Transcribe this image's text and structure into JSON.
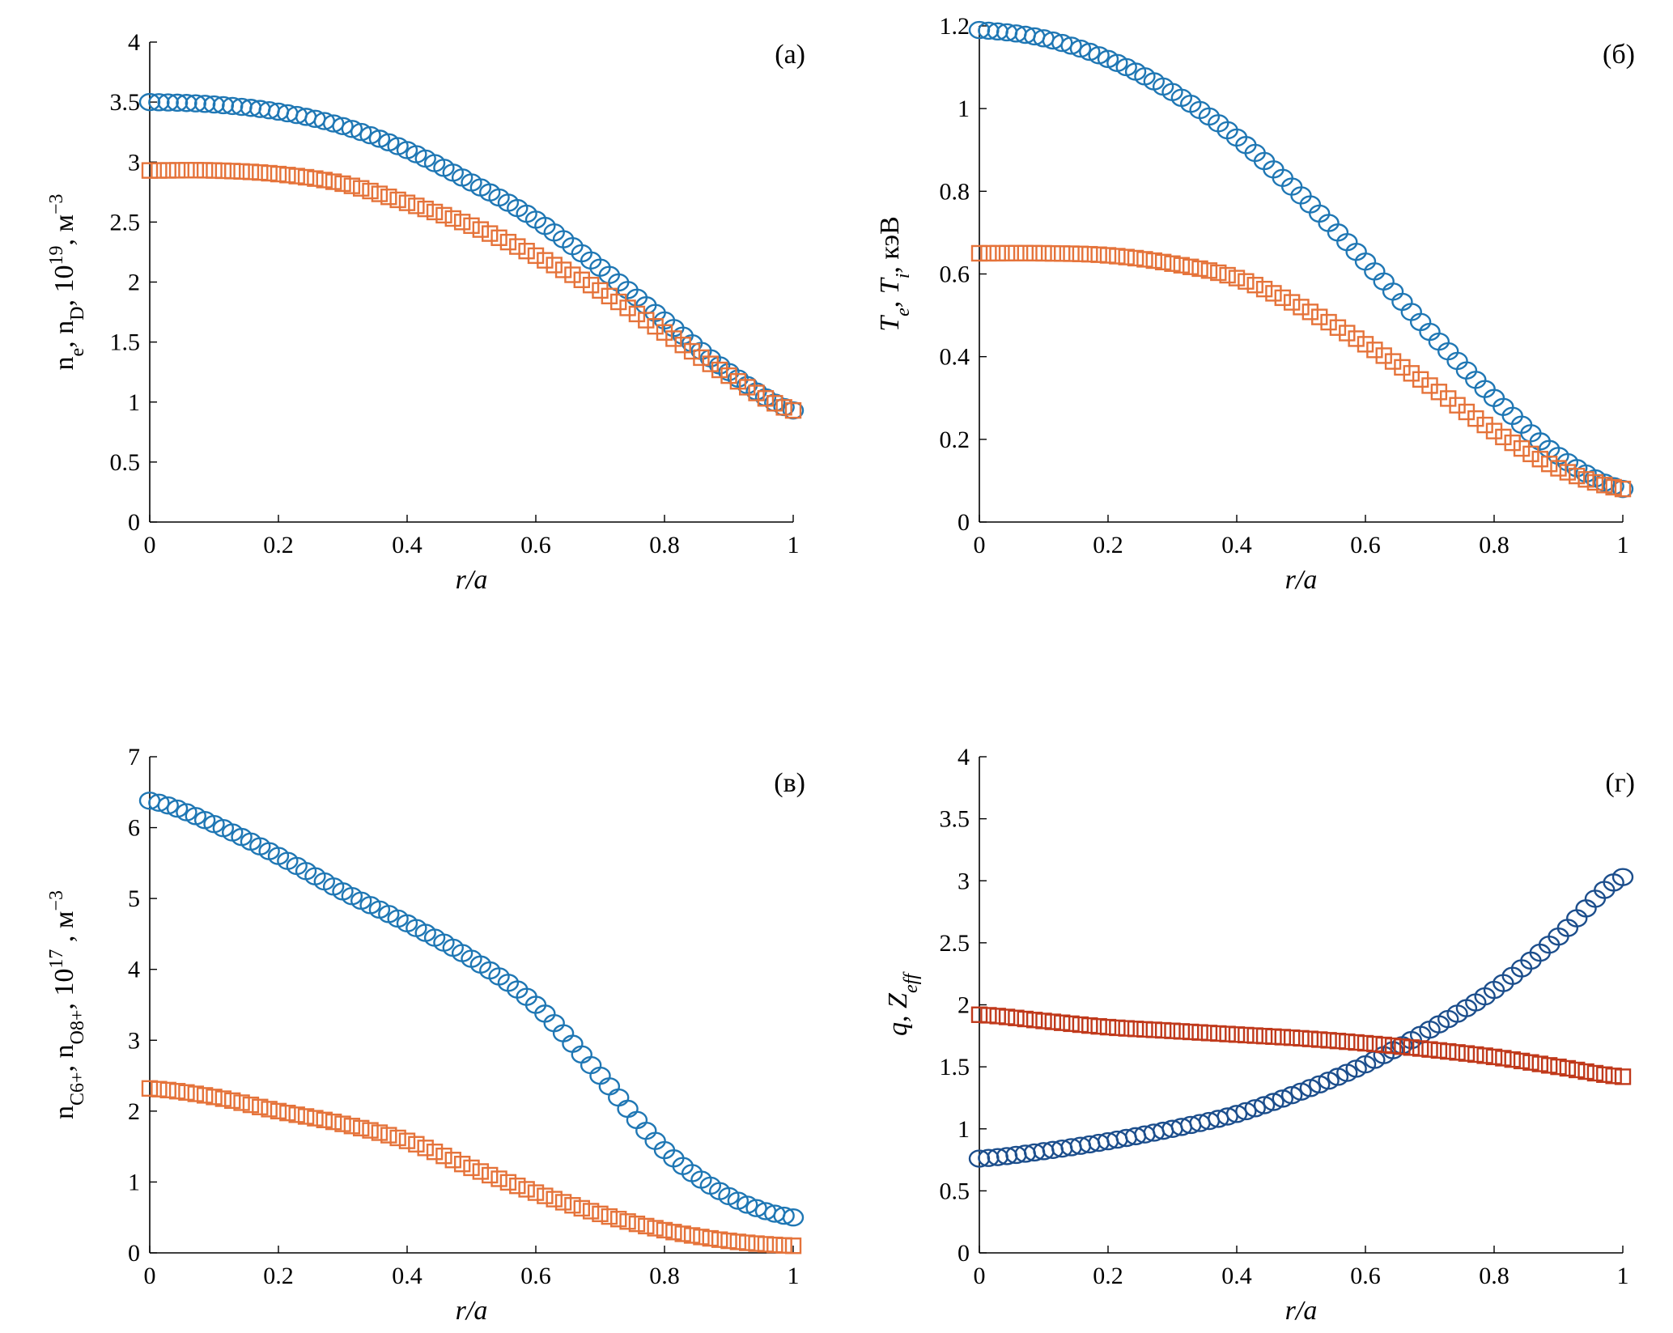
{
  "chart_data": [
    {
      "type": "scatter",
      "panel": "(a)",
      "xlabel": "r/a",
      "ylabel": "n_e, n_D, 10^19, м^-3",
      "xlim": [
        0,
        1
      ],
      "ylim": [
        0,
        4
      ],
      "xticks": [
        "0",
        "0.2",
        "0.4",
        "0.6",
        "0.8",
        "1"
      ],
      "yticks": [
        "0",
        "0.5",
        "1",
        "1.5",
        "2",
        "2.5",
        "3",
        "3.5",
        "4"
      ],
      "x": [
        0,
        0.1,
        0.2,
        0.3,
        0.4,
        0.5,
        0.6,
        0.7,
        0.8,
        0.9,
        1.0
      ],
      "series": [
        {
          "name": "n_e",
          "marker": "circle",
          "color": "#1f77b4",
          "values": [
            3.5,
            3.48,
            3.42,
            3.3,
            3.1,
            2.83,
            2.52,
            2.12,
            1.68,
            1.25,
            0.93
          ]
        },
        {
          "name": "n_D",
          "marker": "square",
          "color": "#e5733a",
          "values": [
            2.93,
            2.93,
            2.9,
            2.82,
            2.66,
            2.47,
            2.22,
            1.93,
            1.58,
            1.22,
            0.93
          ]
        }
      ]
    },
    {
      "type": "scatter",
      "panel": "(б)",
      "xlabel": "r/a",
      "ylabel": "T_e, T_i, кэВ",
      "xlim": [
        0,
        1
      ],
      "ylim": [
        0,
        1.2
      ],
      "xticks": [
        "0",
        "0.2",
        "0.4",
        "0.6",
        "0.8",
        "1"
      ],
      "yticks": [
        "0",
        "0.2",
        "0.4",
        "0.6",
        "0.8",
        "1",
        "1.2"
      ],
      "x": [
        0,
        0.1,
        0.2,
        0.3,
        0.4,
        0.5,
        0.6,
        0.7,
        0.8,
        0.9,
        1.0
      ],
      "series": [
        {
          "name": "T_e",
          "marker": "circle",
          "color": "#1f77b4",
          "values": [
            1.19,
            1.17,
            1.12,
            1.04,
            0.93,
            0.79,
            0.63,
            0.46,
            0.3,
            0.16,
            0.08
          ]
        },
        {
          "name": "T_i",
          "marker": "square",
          "color": "#e5733a",
          "values": [
            0.65,
            0.65,
            0.645,
            0.625,
            0.59,
            0.52,
            0.43,
            0.33,
            0.22,
            0.13,
            0.08
          ]
        }
      ]
    },
    {
      "type": "scatter",
      "panel": "(в)",
      "xlabel": "r/a",
      "ylabel": "n_C6+, n_O8+, 10^17, м^-3",
      "xlim": [
        0,
        1
      ],
      "ylim": [
        0,
        7
      ],
      "xticks": [
        "0",
        "0.2",
        "0.4",
        "0.6",
        "0.8",
        "1"
      ],
      "yticks": [
        "0",
        "1",
        "2",
        "3",
        "4",
        "5",
        "6",
        "7"
      ],
      "x": [
        0,
        0.1,
        0.2,
        0.3,
        0.4,
        0.5,
        0.6,
        0.7,
        0.8,
        0.9,
        1.0
      ],
      "series": [
        {
          "name": "n_C6+",
          "marker": "circle",
          "color": "#1f77b4",
          "values": [
            6.38,
            6.05,
            5.6,
            5.1,
            4.65,
            4.15,
            3.5,
            2.5,
            1.45,
            0.8,
            0.5
          ]
        },
        {
          "name": "n_O8+",
          "marker": "square",
          "color": "#e5733a",
          "values": [
            2.32,
            2.2,
            2.0,
            1.82,
            1.58,
            1.2,
            0.85,
            0.55,
            0.32,
            0.17,
            0.1
          ]
        }
      ]
    },
    {
      "type": "scatter",
      "panel": "(г)",
      "xlabel": "r/a",
      "ylabel": "q, Z_eff",
      "xlim": [
        0,
        1
      ],
      "ylim": [
        0,
        4
      ],
      "xticks": [
        "0",
        "0.2",
        "0.4",
        "0.6",
        "0.8",
        "1"
      ],
      "yticks": [
        "0",
        "0.5",
        "1",
        "1.5",
        "2",
        "2.5",
        "3",
        "3.5",
        "4"
      ],
      "x": [
        0,
        0.1,
        0.2,
        0.3,
        0.4,
        0.5,
        0.6,
        0.7,
        0.8,
        0.9,
        1.0
      ],
      "series": [
        {
          "name": "q",
          "marker": "circle",
          "color": "#1c4e8c",
          "values": [
            0.76,
            0.82,
            0.9,
            1.0,
            1.12,
            1.3,
            1.52,
            1.8,
            2.12,
            2.55,
            3.03
          ]
        },
        {
          "name": "Z_eff",
          "marker": "square",
          "color": "#c0391b",
          "values": [
            1.92,
            1.87,
            1.82,
            1.79,
            1.76,
            1.73,
            1.69,
            1.64,
            1.58,
            1.5,
            1.42
          ]
        }
      ]
    }
  ]
}
